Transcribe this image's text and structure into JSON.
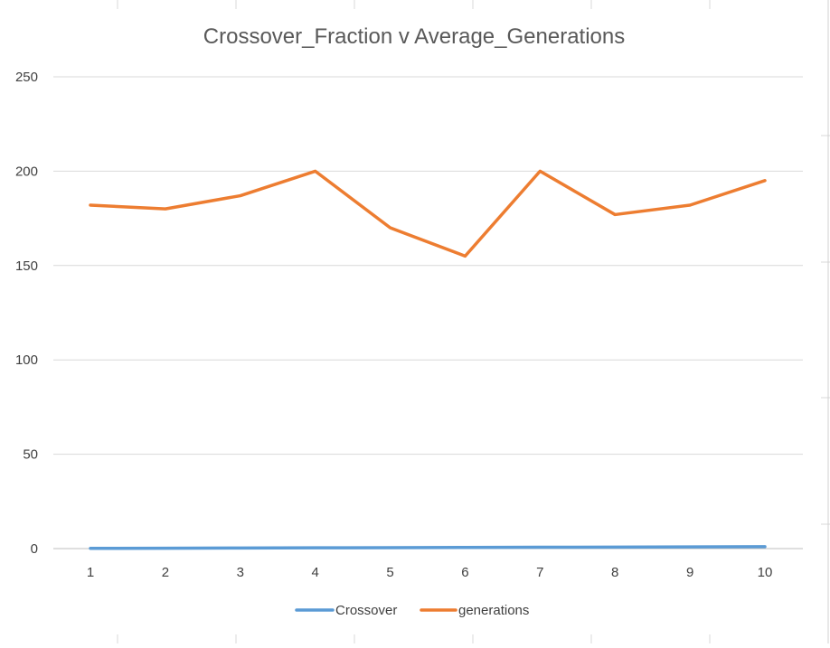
{
  "chart_data": {
    "type": "line",
    "title": "Crossover_Fraction v Average_Generations",
    "categories": [
      "1",
      "2",
      "3",
      "4",
      "5",
      "6",
      "7",
      "8",
      "9",
      "10"
    ],
    "ylim": [
      0,
      250
    ],
    "yticks": [
      "0",
      "50",
      "100",
      "150",
      "200",
      "250"
    ],
    "ytick_values": [
      0,
      50,
      100,
      150,
      200,
      250
    ],
    "grid": true,
    "legend": "bottom",
    "series": [
      {
        "name": "Crossover",
        "color": "#5b9bd5",
        "values": [
          0.1,
          0.2,
          0.3,
          0.4,
          0.5,
          0.6,
          0.7,
          0.8,
          0.9,
          1.0
        ]
      },
      {
        "name": "generations",
        "color": "#ed7d31",
        "values": [
          182,
          180,
          187,
          200,
          170,
          155,
          200,
          177,
          182,
          195
        ]
      }
    ]
  }
}
